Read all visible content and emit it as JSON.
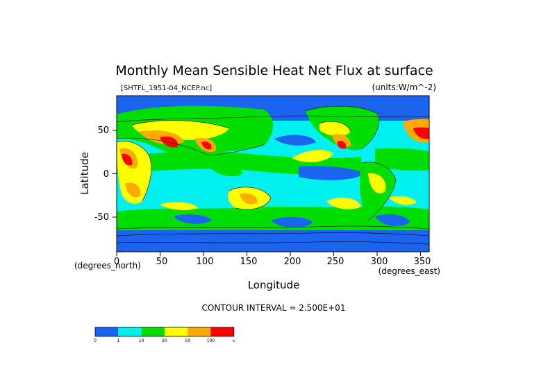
{
  "chart_data": {
    "type": "heatmap",
    "title": "Monthly Mean Sensible Heat Net Flux at surface",
    "file_label": "[SHTFL_1951-04_NCEP.nc]",
    "units_label": "(units:W/m^-2)",
    "xlabel": "Longitude",
    "ylabel": "Latitude",
    "x_unit_label": "(degrees_east)",
    "y_unit_label": "(degrees_north)",
    "xlim": [
      0,
      360
    ],
    "ylim": [
      -90,
      90
    ],
    "xticks": [
      "0",
      "50",
      "100",
      "150",
      "200",
      "250",
      "300",
      "350"
    ],
    "yticks": [
      "50",
      "0",
      "-50"
    ],
    "contour_interval": "CONTOUR INTERVAL = 2.500E+01",
    "colorbar": {
      "colors": [
        "#1a64f0",
        "#00f0f0",
        "#00dd00",
        "#ffff00",
        "#ffaa00",
        "#ff0000"
      ],
      "tick_labels": [
        "0",
        "1",
        "10",
        "20",
        "50",
        "100",
        "∞"
      ]
    }
  }
}
